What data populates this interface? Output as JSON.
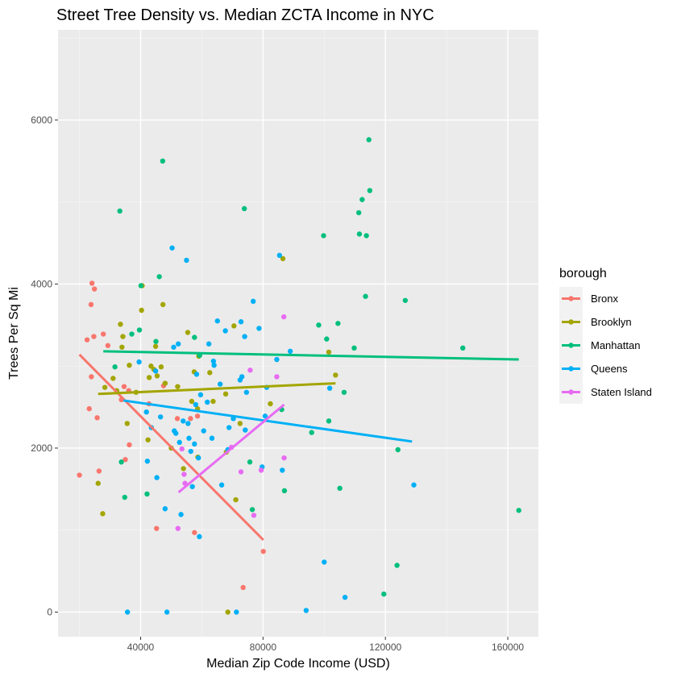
{
  "chart_data": {
    "type": "scatter",
    "title": "Street Tree Density vs. Median ZCTA Income in NYC",
    "xlabel": "Median Zip Code Income (USD)",
    "ylabel": "Trees Per Sq Mi",
    "xlim": [
      13000,
      170000
    ],
    "ylim": [
      -300,
      7100
    ],
    "x_ticks": [
      40000,
      80000,
      120000,
      160000
    ],
    "y_ticks": [
      0,
      2000,
      4000,
      6000
    ],
    "grid": true,
    "legend": {
      "title": "borough",
      "placement": "right"
    },
    "series": [
      {
        "name": "Bronx",
        "color": "#F8766D",
        "points": [
          [
            20000,
            1670
          ],
          [
            22500,
            3320
          ],
          [
            23200,
            2480
          ],
          [
            23800,
            3750
          ],
          [
            23900,
            2870
          ],
          [
            24100,
            4010
          ],
          [
            24700,
            3360
          ],
          [
            24900,
            3940
          ],
          [
            25800,
            2370
          ],
          [
            26400,
            1720
          ],
          [
            27800,
            3390
          ],
          [
            29300,
            3250
          ],
          [
            33700,
            2590
          ],
          [
            34600,
            2750
          ],
          [
            35000,
            1860
          ],
          [
            36100,
            2700
          ],
          [
            36300,
            2040
          ],
          [
            42700,
            2540
          ],
          [
            45200,
            1020
          ],
          [
            47500,
            2760
          ],
          [
            52000,
            2360
          ],
          [
            56300,
            2360
          ],
          [
            57600,
            970
          ],
          [
            58600,
            2390
          ],
          [
            73500,
            300
          ],
          [
            80100,
            740
          ]
        ],
        "fit": [
          [
            20000,
            3140
          ],
          [
            80100,
            880
          ]
        ]
      },
      {
        "name": "Brooklyn",
        "color": "#A3A500",
        "points": [
          [
            26100,
            1570
          ],
          [
            27600,
            1200
          ],
          [
            28300,
            2740
          ],
          [
            31000,
            2850
          ],
          [
            32200,
            2700
          ],
          [
            33400,
            3510
          ],
          [
            33900,
            3230
          ],
          [
            34200,
            3360
          ],
          [
            35600,
            2300
          ],
          [
            36300,
            3010
          ],
          [
            38500,
            2680
          ],
          [
            40300,
            3680
          ],
          [
            40500,
            3980
          ],
          [
            42400,
            2100
          ],
          [
            42800,
            2860
          ],
          [
            43400,
            3000
          ],
          [
            44300,
            2960
          ],
          [
            44900,
            3240
          ],
          [
            45400,
            2880
          ],
          [
            46700,
            2990
          ],
          [
            47300,
            3750
          ],
          [
            48000,
            2790
          ],
          [
            50000,
            2000
          ],
          [
            52100,
            2750
          ],
          [
            54000,
            1750
          ],
          [
            55400,
            3410
          ],
          [
            56700,
            2570
          ],
          [
            57500,
            2930
          ],
          [
            58600,
            2480
          ],
          [
            58700,
            1890
          ],
          [
            59000,
            3120
          ],
          [
            62600,
            2920
          ],
          [
            63700,
            2570
          ],
          [
            67800,
            2660
          ],
          [
            68000,
            1950
          ],
          [
            68500,
            0
          ],
          [
            70500,
            3490
          ],
          [
            71100,
            1370
          ],
          [
            72500,
            2300
          ],
          [
            82400,
            2540
          ],
          [
            86500,
            4310
          ],
          [
            101500,
            3170
          ],
          [
            103700,
            2890
          ]
        ],
        "fit": [
          [
            26100,
            2660
          ],
          [
            103700,
            2790
          ]
        ]
      },
      {
        "name": "Manhattan",
        "color": "#00BF7D",
        "points": [
          [
            31600,
            2990
          ],
          [
            33200,
            4890
          ],
          [
            33700,
            1830
          ],
          [
            34800,
            1400
          ],
          [
            37100,
            3390
          ],
          [
            39600,
            3440
          ],
          [
            40100,
            3980
          ],
          [
            42100,
            1440
          ],
          [
            45000,
            3300
          ],
          [
            46100,
            4090
          ],
          [
            47200,
            5500
          ],
          [
            57600,
            3350
          ],
          [
            59300,
            3130
          ],
          [
            73900,
            4920
          ],
          [
            75700,
            1830
          ],
          [
            76500,
            1250
          ],
          [
            86100,
            2470
          ],
          [
            87000,
            1480
          ],
          [
            95900,
            2190
          ],
          [
            98200,
            3500
          ],
          [
            99800,
            4590
          ],
          [
            100800,
            3330
          ],
          [
            101500,
            2330
          ],
          [
            104500,
            3520
          ],
          [
            105100,
            1510
          ],
          [
            106500,
            2680
          ],
          [
            109800,
            3220
          ],
          [
            111300,
            4870
          ],
          [
            111500,
            4610
          ],
          [
            112400,
            5030
          ],
          [
            113500,
            3850
          ],
          [
            113800,
            4590
          ],
          [
            114600,
            5760
          ],
          [
            114900,
            5140
          ],
          [
            119500,
            220
          ],
          [
            123800,
            570
          ],
          [
            124100,
            1980
          ],
          [
            126500,
            3800
          ],
          [
            145300,
            3220
          ],
          [
            163600,
            1240
          ]
        ],
        "fit": [
          [
            27800,
            3180
          ],
          [
            163600,
            3080
          ]
        ]
      },
      {
        "name": "Queens",
        "color": "#00B0F6",
        "points": [
          [
            35700,
            0
          ],
          [
            39500,
            3050
          ],
          [
            41900,
            2440
          ],
          [
            42200,
            1840
          ],
          [
            43500,
            2250
          ],
          [
            44900,
            2940
          ],
          [
            45300,
            1640
          ],
          [
            46500,
            2380
          ],
          [
            48000,
            1260
          ],
          [
            48600,
            0
          ],
          [
            50300,
            4440
          ],
          [
            51000,
            2210
          ],
          [
            50800,
            3230
          ],
          [
            51500,
            2180
          ],
          [
            52700,
            2070
          ],
          [
            52300,
            3270
          ],
          [
            53200,
            1190
          ],
          [
            53900,
            2330
          ],
          [
            55000,
            4290
          ],
          [
            55500,
            2300
          ],
          [
            55800,
            2120
          ],
          [
            56400,
            1960
          ],
          [
            56900,
            1530
          ],
          [
            57600,
            2050
          ],
          [
            58000,
            2530
          ],
          [
            58300,
            2900
          ],
          [
            58900,
            1880
          ],
          [
            59200,
            920
          ],
          [
            59600,
            2650
          ],
          [
            60600,
            2210
          ],
          [
            61800,
            2560
          ],
          [
            62300,
            3270
          ],
          [
            63300,
            2120
          ],
          [
            63800,
            3060
          ],
          [
            64000,
            3010
          ],
          [
            65100,
            3550
          ],
          [
            66000,
            2780
          ],
          [
            66500,
            1550
          ],
          [
            67700,
            3430
          ],
          [
            68500,
            1980
          ],
          [
            68900,
            2250
          ],
          [
            70300,
            2360
          ],
          [
            71300,
            0
          ],
          [
            72500,
            2830
          ],
          [
            72800,
            3540
          ],
          [
            73100,
            2870
          ],
          [
            74000,
            3360
          ],
          [
            74200,
            2220
          ],
          [
            74600,
            2680
          ],
          [
            76800,
            3790
          ],
          [
            78700,
            3460
          ],
          [
            79700,
            1770
          ],
          [
            80700,
            2390
          ],
          [
            81200,
            2740
          ],
          [
            84500,
            3080
          ],
          [
            85400,
            4350
          ],
          [
            86300,
            1730
          ],
          [
            88900,
            3180
          ],
          [
            94100,
            20
          ],
          [
            100000,
            610
          ],
          [
            101800,
            2730
          ],
          [
            106800,
            180
          ],
          [
            129300,
            1550
          ]
        ],
        "fit": [
          [
            34400,
            2580
          ],
          [
            128700,
            2080
          ]
        ]
      },
      {
        "name": "Staten Island",
        "color": "#E76BF3",
        "points": [
          [
            52200,
            1020
          ],
          [
            53500,
            1990
          ],
          [
            54500,
            1570
          ],
          [
            54200,
            1680
          ],
          [
            69700,
            2010
          ],
          [
            72800,
            1710
          ],
          [
            75800,
            2950
          ],
          [
            77000,
            1180
          ],
          [
            79400,
            1730
          ],
          [
            84500,
            2870
          ],
          [
            86800,
            3600
          ],
          [
            86900,
            1880
          ]
        ],
        "fit": [
          [
            52400,
            1460
          ],
          [
            86900,
            2530
          ]
        ]
      }
    ]
  }
}
